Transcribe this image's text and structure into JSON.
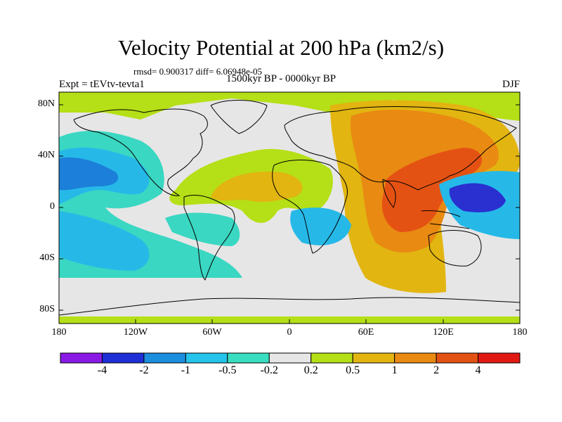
{
  "header": {
    "title": "Velocity Potential at 200 hPa (km2/s)",
    "stats": "rmsd= 0.900317 diff= 6.06948e-05",
    "experiment": "Expt = tEVtv-tevta1",
    "period": "1500kyr BP - 0000kyr BP",
    "season": "DJF"
  },
  "axes": {
    "lat_labels": [
      "80N",
      "40N",
      "0",
      "40S",
      "80S"
    ],
    "lon_labels": [
      "180",
      "120W",
      "60W",
      "0",
      "60E",
      "120E",
      "180"
    ]
  },
  "colorbar": {
    "labels": [
      "-4",
      "-2",
      "-1",
      "-0.5",
      "-0.2",
      "0.2",
      "0.5",
      "1",
      "2",
      "4"
    ],
    "colors": [
      "#8a19e6",
      "#1f2fd6",
      "#1c8ede",
      "#25c4ea",
      "#39dec0",
      "#e6e6e6",
      "#b5df16",
      "#e2b511",
      "#e98a12",
      "#e45213",
      "#e21913"
    ]
  },
  "field_colors": {
    "neg4": "#2a2fd0",
    "neg2": "#1c7fd9",
    "neg1": "#26b9e8",
    "neg05": "#3ad7c2",
    "neutral": "#e6e6e6",
    "pos02": "#b5df16",
    "pos05": "#e2b511",
    "pos1": "#e98a12",
    "pos2": "#e45213"
  }
}
